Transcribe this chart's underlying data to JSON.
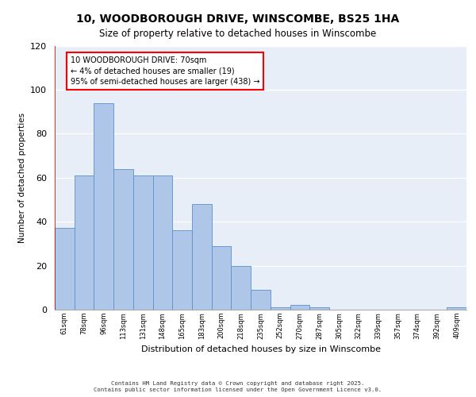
{
  "title1": "10, WOODBOROUGH DRIVE, WINSCOMBE, BS25 1HA",
  "title2": "Size of property relative to detached houses in Winscombe",
  "xlabel": "Distribution of detached houses by size in Winscombe",
  "ylabel": "Number of detached properties",
  "categories": [
    "61sqm",
    "78sqm",
    "96sqm",
    "113sqm",
    "131sqm",
    "148sqm",
    "165sqm",
    "183sqm",
    "200sqm",
    "218sqm",
    "235sqm",
    "252sqm",
    "270sqm",
    "287sqm",
    "305sqm",
    "322sqm",
    "339sqm",
    "357sqm",
    "374sqm",
    "392sqm",
    "409sqm"
  ],
  "values": [
    37,
    61,
    94,
    64,
    61,
    61,
    36,
    48,
    29,
    20,
    9,
    1,
    2,
    1,
    0,
    0,
    0,
    0,
    0,
    0,
    1
  ],
  "bar_color": "#aec6e8",
  "bar_edge_color": "#5b8fc9",
  "annotation_text": "10 WOODBOROUGH DRIVE: 70sqm\n← 4% of detached houses are smaller (19)\n95% of semi-detached houses are larger (438) →",
  "annotation_box_color": "white",
  "annotation_box_edge_color": "red",
  "red_line_x": -0.5,
  "ylim": [
    0,
    120
  ],
  "yticks": [
    0,
    20,
    40,
    60,
    80,
    100,
    120
  ],
  "background_color": "#e8eef8",
  "footer1": "Contains HM Land Registry data © Crown copyright and database right 2025.",
  "footer2": "Contains public sector information licensed under the Open Government Licence v3.0."
}
